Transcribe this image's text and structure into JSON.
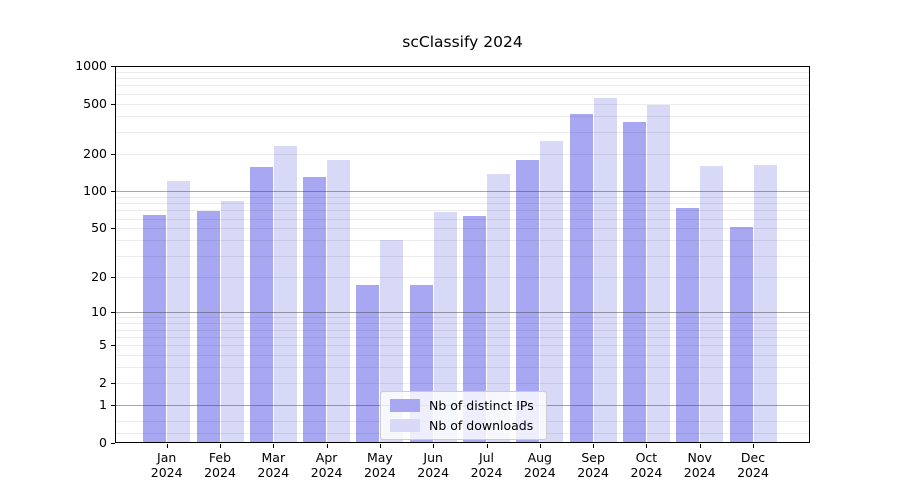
{
  "chart_data": {
    "type": "bar",
    "title": "scClassify 2024",
    "categories": [
      "Jan 2024",
      "Feb 2024",
      "Mar 2024",
      "Apr 2024",
      "May 2024",
      "Jun 2024",
      "Jul 2024",
      "Aug 2024",
      "Sep 2024",
      "Oct 2024",
      "Nov 2024",
      "Dec 2024"
    ],
    "months": [
      "Jan",
      "Feb",
      "Mar",
      "Apr",
      "May",
      "Jun",
      "Jul",
      "Aug",
      "Sep",
      "Oct",
      "Nov",
      "Dec"
    ],
    "year": "2024",
    "series": [
      {
        "name": "Nb of distinct IPs",
        "color": "#a8a8f2",
        "values": [
          64,
          69,
          156,
          131,
          17,
          17,
          63,
          178,
          413,
          361,
          73,
          51
        ]
      },
      {
        "name": "Nb of downloads",
        "color": "#d8d8f7",
        "values": [
          120,
          84,
          230,
          177,
          40,
          68,
          138,
          253,
          560,
          493,
          158,
          162
        ]
      }
    ],
    "yscale": "log1p",
    "ylim": [
      0,
      1000
    ],
    "yticks": {
      "values": [
        0,
        1,
        2,
        5,
        10,
        20,
        50,
        100,
        200,
        500,
        1000
      ],
      "labels": [
        "0",
        "1",
        "2",
        "5",
        "10",
        "20",
        "50",
        "100",
        "200",
        "500",
        "1000"
      ]
    },
    "gridlines": {
      "major": [
        1,
        10,
        100
      ],
      "minor": [
        0.2,
        0.5,
        2,
        3,
        4,
        5,
        6,
        7,
        8,
        9,
        20,
        30,
        40,
        50,
        60,
        70,
        80,
        90,
        200,
        300,
        400,
        500,
        600,
        700,
        800,
        900
      ]
    },
    "grid": true,
    "legend_position": "lower center",
    "axis_color": "#000000",
    "background_color": "#ffffff"
  }
}
